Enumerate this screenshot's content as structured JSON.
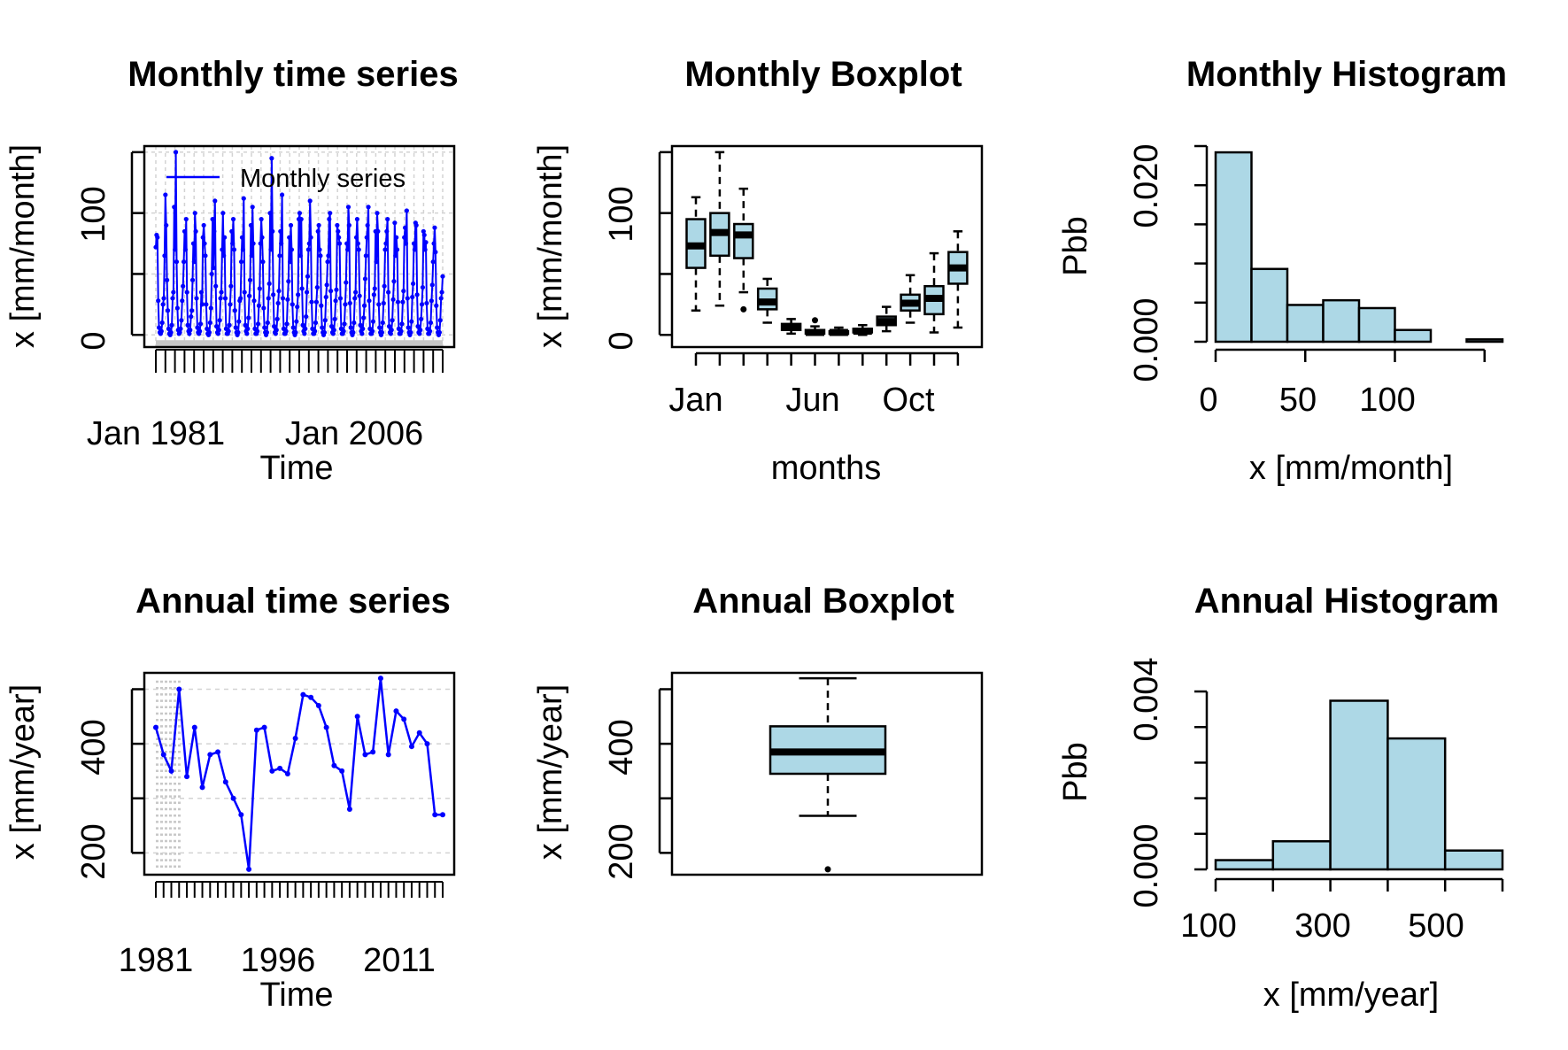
{
  "chart_data": [
    {
      "type": "line",
      "title": "Monthly time series",
      "xlabel": "Time",
      "ylabel": "x [mm/month]",
      "x_tick_labels": [
        "Jan 1981",
        "Jan 2006"
      ],
      "y_ticks": [
        0,
        100
      ],
      "ylim": [
        -10,
        155
      ],
      "grid": true,
      "legend": {
        "position": "top-left",
        "entries": [
          "Monthly series"
        ]
      },
      "series": [
        {
          "name": "Monthly series",
          "color": "#0000ff",
          "values": [
            [
              72,
              82,
              80,
              28,
              6,
              2,
              1,
              3,
              10,
              25,
              30,
              65
            ],
            [
              115,
              90,
              45,
              20,
              5,
              1,
              0,
              2,
              8,
              30,
              35,
              105
            ],
            [
              70,
              150,
              60,
              22,
              4,
              1,
              2,
              5,
              12,
              28,
              40,
              60
            ],
            [
              85,
              70,
              95,
              35,
              8,
              3,
              1,
              4,
              15,
              20,
              45,
              75
            ],
            [
              60,
              100,
              85,
              30,
              6,
              2,
              1,
              3,
              9,
              35,
              25,
              80
            ],
            [
              90,
              75,
              65,
              25,
              5,
              1,
              0,
              2,
              10,
              22,
              50,
              95
            ],
            [
              55,
              85,
              110,
              40,
              7,
              2,
              1,
              4,
              12,
              30,
              35,
              70
            ],
            [
              100,
              65,
              80,
              30,
              5,
              1,
              1,
              3,
              8,
              25,
              40,
              85
            ],
            [
              75,
              95,
              70,
              20,
              6,
              2,
              0,
              2,
              11,
              28,
              30,
              60
            ],
            [
              80,
              70,
              112,
              35,
              8,
              3,
              1,
              5,
              14,
              32,
              45,
              90
            ],
            [
              65,
              105,
              75,
              28,
              5,
              1,
              1,
              3,
              9,
              24,
              38,
              75
            ],
            [
              95,
              80,
              60,
              22,
              6,
              2,
              0,
              2,
              10,
              30,
              42,
              100
            ],
            [
              70,
              145,
              85,
              33,
              7,
              2,
              1,
              4,
              13,
              26,
              36,
              65
            ],
            [
              85,
              75,
              115,
              30,
              5,
              1,
              1,
              3,
              9,
              29,
              44,
              80
            ],
            [
              60,
              90,
              70,
              25,
              6,
              2,
              0,
              2,
              11,
              23,
              33,
              95
            ],
            [
              100,
              65,
              95,
              38,
              8,
              3,
              1,
              5,
              15,
              35,
              48,
              70
            ],
            [
              75,
              110,
              80,
              27,
              5,
              1,
              1,
              3,
              10,
              27,
              39,
              85
            ],
            [
              90,
              70,
              65,
              24,
              6,
              2,
              0,
              2,
              12,
              31,
              41,
              60
            ],
            [
              65,
              95,
              100,
              36,
              7,
              2,
              1,
              4,
              13,
              28,
              37,
              90
            ],
            [
              85,
              80,
              75,
              30,
              5,
              1,
              1,
              3,
              9,
              25,
              43,
              75
            ],
            [
              70,
              105,
              90,
              26,
              6,
              2,
              0,
              2,
              10,
              30,
              35,
              80
            ],
            [
              95,
              75,
              70,
              32,
              8,
              3,
              1,
              5,
              14,
              24,
              46,
              65
            ],
            [
              80,
              90,
              105,
              28,
              5,
              1,
              1,
              3,
              11,
              33,
              38,
              85
            ],
            [
              60,
              100,
              85,
              25,
              6,
              2,
              0,
              2,
              10,
              26,
              40,
              70
            ],
            [
              75,
              85,
              95,
              35,
              7,
              2,
              1,
              4,
              12,
              29,
              44,
              92
            ],
            [
              65,
              80,
              70,
              27,
              5,
              1,
              1,
              3,
              9,
              27,
              36,
              80
            ],
            [
              88,
              75,
              102,
              30,
              6,
              2,
              0,
              2,
              11,
              31,
              42,
              75
            ],
            [
              70,
              92,
              90,
              33,
              7,
              2,
              1,
              4,
              13,
              25,
              39,
              85
            ],
            [
              82,
              70,
              76,
              26,
              5,
              1,
              1,
              3,
              10,
              28,
              41,
              60
            ],
            [
              75,
              88,
              68,
              24,
              6,
              2,
              0,
              2,
              12,
              30,
              35,
              48
            ]
          ]
        }
      ]
    },
    {
      "type": "box",
      "title": "Monthly Boxplot",
      "xlabel": "months",
      "ylabel": "x [mm/month]",
      "x_tick_labels": [
        "Jan",
        "Jun",
        "Oct"
      ],
      "y_ticks": [
        0,
        100
      ],
      "ylim": [
        -10,
        155
      ],
      "color": "#add8e6",
      "boxes": [
        {
          "whisker_low": 20,
          "q1": 55,
          "median": 73,
          "q3": 95,
          "whisker_high": 113,
          "outliers": []
        },
        {
          "whisker_low": 24,
          "q1": 65,
          "median": 84,
          "q3": 100,
          "whisker_high": 150,
          "outliers": []
        },
        {
          "whisker_low": 35,
          "q1": 63,
          "median": 82,
          "q3": 91,
          "whisker_high": 120,
          "outliers": [
            21
          ]
        },
        {
          "whisker_low": 10,
          "q1": 21,
          "median": 27,
          "q3": 38,
          "whisker_high": 46,
          "outliers": []
        },
        {
          "whisker_low": 1,
          "q1": 4,
          "median": 6,
          "q3": 9,
          "whisker_high": 13,
          "outliers": []
        },
        {
          "whisker_low": 0,
          "q1": 1,
          "median": 2,
          "q3": 4,
          "whisker_high": 7,
          "outliers": [
            12
          ]
        },
        {
          "whisker_low": 0,
          "q1": 1,
          "median": 2,
          "q3": 3,
          "whisker_high": 6,
          "outliers": []
        },
        {
          "whisker_low": 0,
          "q1": 2,
          "median": 3,
          "q3": 5,
          "whisker_high": 8,
          "outliers": []
        },
        {
          "whisker_low": 3,
          "q1": 8,
          "median": 11,
          "q3": 15,
          "whisker_high": 23,
          "outliers": []
        },
        {
          "whisker_low": 10,
          "q1": 20,
          "median": 26,
          "q3": 33,
          "whisker_high": 49,
          "outliers": []
        },
        {
          "whisker_low": 2,
          "q1": 17,
          "median": 30,
          "q3": 40,
          "whisker_high": 67,
          "outliers": []
        },
        {
          "whisker_low": 6,
          "q1": 42,
          "median": 55,
          "q3": 68,
          "whisker_high": 85,
          "outliers": []
        }
      ]
    },
    {
      "type": "histogram",
      "title": "Monthly Histogram",
      "xlabel": "x [mm/month]",
      "ylabel": "Pbb",
      "x_ticks": [
        0,
        50,
        100
      ],
      "y_tick_labels": [
        "0.000",
        "0.020"
      ],
      "y_ticks_values": [
        0,
        0.005,
        0.01,
        0.015,
        0.02,
        0.025
      ],
      "ylim": [
        0,
        0.025
      ],
      "color": "#add8e6",
      "bins": [
        [
          0,
          20
        ],
        [
          20,
          40
        ],
        [
          40,
          60
        ],
        [
          60,
          80
        ],
        [
          80,
          100
        ],
        [
          100,
          120
        ],
        [
          120,
          140
        ],
        [
          140,
          160
        ]
      ],
      "values": [
        0.0242,
        0.0093,
        0.0047,
        0.0053,
        0.0043,
        0.0015,
        0.0,
        0.0003
      ]
    },
    {
      "type": "line",
      "title": "Annual time series",
      "xlabel": "Time",
      "ylabel": "x [mm/year]",
      "x_tick_labels": [
        "1981",
        "1996",
        "2011"
      ],
      "y_ticks": [
        200,
        400
      ],
      "ylim": [
        160,
        530
      ],
      "grid": true,
      "series": [
        {
          "name": "",
          "color": "#0000ff",
          "x": [
            1981,
            1982,
            1983,
            1984,
            1985,
            1986,
            1987,
            1988,
            1989,
            1990,
            1991,
            1992,
            1993,
            1994,
            1995,
            1996,
            1997,
            1998,
            1999,
            2000,
            2001,
            2002,
            2003,
            2004,
            2005,
            2006,
            2007,
            2008,
            2009,
            2010,
            2011,
            2012,
            2013,
            2014,
            2015,
            2016,
            2017,
            2018
          ],
          "values": [
            430,
            380,
            350,
            500,
            340,
            430,
            320,
            380,
            385,
            330,
            300,
            270,
            170,
            425,
            430,
            350,
            355,
            345,
            410,
            490,
            485,
            470,
            430,
            360,
            350,
            280,
            450,
            380,
            385,
            520,
            380,
            460,
            445,
            395,
            420,
            400,
            270,
            270
          ]
        }
      ]
    },
    {
      "type": "box",
      "title": "Annual Boxplot",
      "xlabel": "",
      "ylabel": "x [mm/year]",
      "y_ticks": [
        200,
        400
      ],
      "ylim": [
        160,
        530
      ],
      "color": "#add8e6",
      "boxes": [
        {
          "whisker_low": 268,
          "q1": 345,
          "median": 385,
          "q3": 432,
          "whisker_high": 520,
          "outliers": [
            170
          ]
        }
      ]
    },
    {
      "type": "histogram",
      "title": "Annual Histogram",
      "xlabel": "x [mm/year]",
      "ylabel": "Pbb",
      "x_ticks": [
        100,
        300,
        500
      ],
      "x_tick_positions": [
        100,
        200,
        300,
        400,
        500,
        600
      ],
      "y_tick_labels": [
        "0.000",
        "0.004"
      ],
      "y_ticks_values": [
        0,
        0.001,
        0.002,
        0.003,
        0.004,
        0.005
      ],
      "ylim": [
        0,
        0.0052
      ],
      "color": "#add8e6",
      "bins": [
        [
          100,
          200
        ],
        [
          200,
          300
        ],
        [
          300,
          400
        ],
        [
          400,
          500
        ],
        [
          500,
          600
        ]
      ],
      "values": [
        0.00026,
        0.00079,
        0.00474,
        0.00368,
        0.00053
      ]
    }
  ]
}
